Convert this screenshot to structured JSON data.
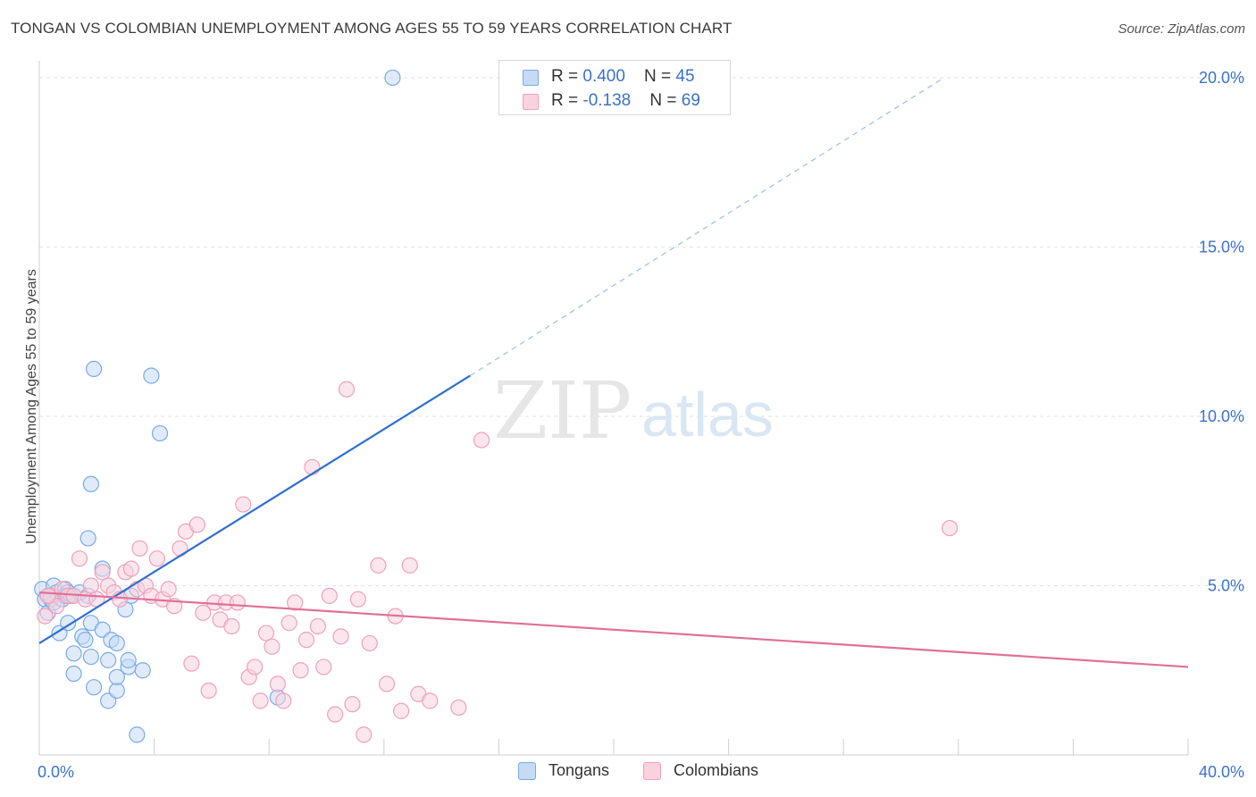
{
  "title": "TONGAN VS COLOMBIAN UNEMPLOYMENT AMONG AGES 55 TO 59 YEARS CORRELATION CHART",
  "source": "Source: ZipAtlas.com",
  "watermark": {
    "zip": "ZIP",
    "atlas": "atlas"
  },
  "legend": {
    "rows": [
      {
        "r_label": "R = ",
        "r_value": "0.400",
        "n_label": "N = ",
        "n_value": "45"
      },
      {
        "r_label": "R = ",
        "r_value": "-0.138",
        "n_label": "N = ",
        "n_value": "69"
      }
    ]
  },
  "chart_data": {
    "type": "scatter",
    "title": "TONGAN VS COLOMBIAN UNEMPLOYMENT AMONG AGES 55 TO 59 YEARS CORRELATION CHART",
    "xlabel": "",
    "ylabel": "Unemployment Among Ages 55 to 59 years",
    "xlim": [
      0,
      40
    ],
    "ylim": [
      0,
      20.5
    ],
    "x_tick_labels": [
      {
        "value": 0,
        "label": "0.0%"
      },
      {
        "value": 40,
        "label": "40.0%"
      }
    ],
    "y_tick_labels": [
      {
        "value": 5,
        "label": "5.0%"
      },
      {
        "value": 10,
        "label": "10.0%"
      },
      {
        "value": 15,
        "label": "15.0%"
      },
      {
        "value": 20,
        "label": "20.0%"
      }
    ],
    "grid": true,
    "legend_position": "top-center",
    "series": [
      {
        "name": "Tongans",
        "color": "#7aaae6",
        "fill": "#c5daf5",
        "line_color": "#2f6fd1",
        "r": 0.4,
        "n": 45,
        "trend": {
          "x0": 0,
          "y0": 3.3,
          "x1": 15,
          "y1": 11.2,
          "dash_x1": 31.5,
          "dash_y1": 20.0
        },
        "points": [
          [
            0.1,
            4.9
          ],
          [
            0.2,
            4.6
          ],
          [
            0.3,
            4.7
          ],
          [
            0.3,
            4.2
          ],
          [
            0.4,
            4.6
          ],
          [
            0.5,
            5.0
          ],
          [
            0.5,
            4.5
          ],
          [
            0.6,
            4.8
          ],
          [
            0.7,
            3.6
          ],
          [
            0.8,
            4.6
          ],
          [
            0.9,
            4.9
          ],
          [
            0.9,
            4.7
          ],
          [
            1.0,
            3.9
          ],
          [
            1.0,
            4.8
          ],
          [
            1.1,
            4.7
          ],
          [
            1.2,
            3.0
          ],
          [
            1.2,
            2.4
          ],
          [
            1.4,
            4.8
          ],
          [
            1.5,
            3.5
          ],
          [
            1.6,
            3.4
          ],
          [
            1.7,
            4.7
          ],
          [
            1.7,
            6.4
          ],
          [
            1.8,
            3.9
          ],
          [
            1.8,
            8.0
          ],
          [
            1.8,
            2.9
          ],
          [
            1.9,
            2.0
          ],
          [
            1.9,
            11.4
          ],
          [
            2.2,
            3.7
          ],
          [
            2.2,
            5.5
          ],
          [
            2.4,
            1.6
          ],
          [
            2.4,
            2.8
          ],
          [
            2.5,
            3.4
          ],
          [
            2.7,
            1.9
          ],
          [
            2.7,
            2.3
          ],
          [
            2.7,
            3.3
          ],
          [
            3.0,
            4.3
          ],
          [
            3.1,
            2.6
          ],
          [
            3.1,
            2.8
          ],
          [
            3.2,
            4.7
          ],
          [
            3.4,
            0.6
          ],
          [
            3.6,
            2.5
          ],
          [
            3.9,
            11.2
          ],
          [
            4.2,
            9.5
          ],
          [
            8.3,
            1.7
          ],
          [
            12.3,
            20.0
          ]
        ]
      },
      {
        "name": "Colombians",
        "color": "#f0a0b8",
        "fill": "#f9d2de",
        "line_color": "#e07098",
        "r": -0.138,
        "n": 69,
        "trend": {
          "x0": 0,
          "y0": 4.8,
          "x1": 40,
          "y1": 2.6
        },
        "points": [
          [
            0.2,
            4.1
          ],
          [
            0.4,
            4.7
          ],
          [
            0.6,
            4.4
          ],
          [
            0.8,
            4.9
          ],
          [
            1.0,
            4.7
          ],
          [
            1.2,
            4.7
          ],
          [
            1.4,
            5.8
          ],
          [
            1.6,
            4.6
          ],
          [
            1.8,
            5.0
          ],
          [
            2.0,
            4.6
          ],
          [
            2.2,
            5.4
          ],
          [
            2.4,
            5.0
          ],
          [
            2.6,
            4.8
          ],
          [
            2.8,
            4.6
          ],
          [
            3.0,
            5.4
          ],
          [
            3.2,
            5.5
          ],
          [
            3.4,
            4.9
          ],
          [
            3.5,
            6.1
          ],
          [
            3.7,
            5.0
          ],
          [
            3.9,
            4.7
          ],
          [
            4.1,
            5.8
          ],
          [
            4.3,
            4.6
          ],
          [
            4.5,
            4.9
          ],
          [
            4.7,
            4.4
          ],
          [
            4.9,
            6.1
          ],
          [
            5.1,
            6.6
          ],
          [
            5.3,
            2.7
          ],
          [
            5.5,
            6.8
          ],
          [
            5.7,
            4.2
          ],
          [
            5.9,
            1.9
          ],
          [
            6.1,
            4.5
          ],
          [
            6.3,
            4.0
          ],
          [
            6.5,
            4.5
          ],
          [
            6.7,
            3.8
          ],
          [
            6.9,
            4.5
          ],
          [
            7.1,
            7.4
          ],
          [
            7.3,
            2.3
          ],
          [
            7.5,
            2.6
          ],
          [
            7.7,
            1.6
          ],
          [
            7.9,
            3.6
          ],
          [
            8.1,
            3.2
          ],
          [
            8.3,
            2.1
          ],
          [
            8.5,
            1.6
          ],
          [
            8.7,
            3.9
          ],
          [
            8.9,
            4.5
          ],
          [
            9.1,
            2.5
          ],
          [
            9.3,
            3.4
          ],
          [
            9.5,
            8.5
          ],
          [
            9.7,
            3.8
          ],
          [
            9.9,
            2.6
          ],
          [
            10.1,
            4.7
          ],
          [
            10.3,
            1.2
          ],
          [
            10.5,
            3.5
          ],
          [
            10.7,
            10.8
          ],
          [
            10.9,
            1.5
          ],
          [
            11.1,
            4.6
          ],
          [
            11.3,
            0.6
          ],
          [
            11.5,
            3.3
          ],
          [
            11.8,
            5.6
          ],
          [
            12.1,
            2.1
          ],
          [
            12.4,
            4.1
          ],
          [
            12.6,
            1.3
          ],
          [
            12.9,
            5.6
          ],
          [
            13.2,
            1.8
          ],
          [
            13.6,
            1.6
          ],
          [
            14.6,
            1.4
          ],
          [
            15.4,
            9.3
          ],
          [
            0.3,
            4.7
          ],
          [
            31.7,
            6.7
          ]
        ]
      }
    ]
  }
}
